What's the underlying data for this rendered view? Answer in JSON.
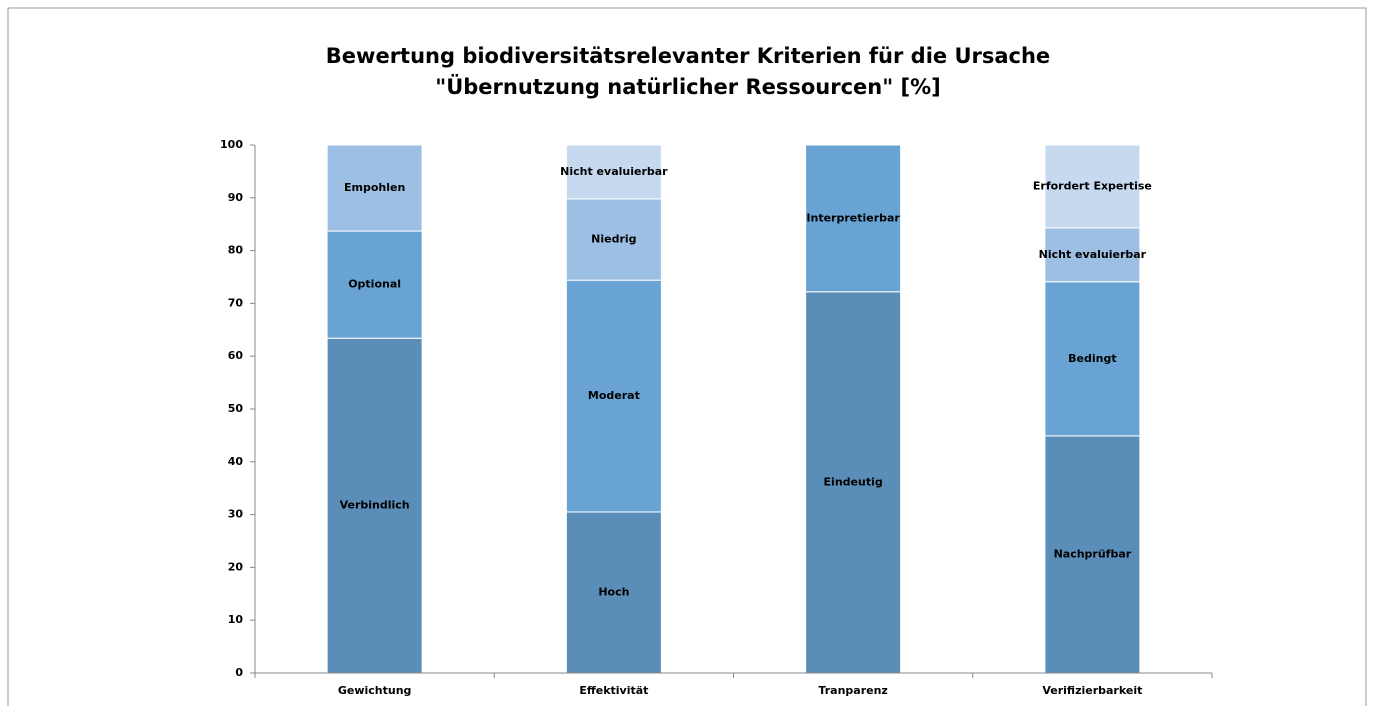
{
  "chart_data": {
    "type": "stacked_bar",
    "title": [
      "Bewertung biodiversitätsrelevanter Kriterien für die Ursache",
      "\"Übernutzung natürlicher Ressourcen\" [%]"
    ],
    "categories": [
      "Gewichtung",
      "Effektivität",
      "Tranparenz",
      "Verifizierbarkeit"
    ],
    "segments": [
      [
        {
          "label": "Verbindlich",
          "value": 63.4,
          "color": "#5a8db8"
        },
        {
          "label": "Optional",
          "value": 20.3,
          "color": "#68a3d3"
        },
        {
          "label": "Empohlen",
          "value": 16.3,
          "color": "#9dbfe3"
        }
      ],
      [
        {
          "label": "Hoch",
          "value": 30.5,
          "color": "#5a8db8"
        },
        {
          "label": "Moderat",
          "value": 43.9,
          "color": "#68a3d3"
        },
        {
          "label": "Niedrig",
          "value": 15.4,
          "color": "#9dbfe3"
        },
        {
          "label": "Nicht evaluierbar",
          "value": 10.2,
          "color": "#c6d9ee"
        }
      ],
      [
        {
          "label": "Eindeutig",
          "value": 72.2,
          "color": "#5a8db8"
        },
        {
          "label": "Interpretierbar",
          "value": 27.8,
          "color": "#68a3d3"
        }
      ],
      [
        {
          "label": "Nachprüfbar",
          "value": 44.9,
          "color": "#5a8db8"
        },
        {
          "label": "Bedingt",
          "value": 29.2,
          "color": "#68a3d3"
        },
        {
          "label": "Nicht evaluierbar",
          "value": 10.2,
          "color": "#9dbfe3"
        },
        {
          "label": "Erfordert Expertise",
          "value": 15.7,
          "color": "#c6d9ee"
        }
      ]
    ],
    "ylim": [
      0,
      100
    ],
    "yticks": [
      0,
      10,
      20,
      30,
      40,
      50,
      60,
      70,
      80,
      90,
      100
    ]
  }
}
